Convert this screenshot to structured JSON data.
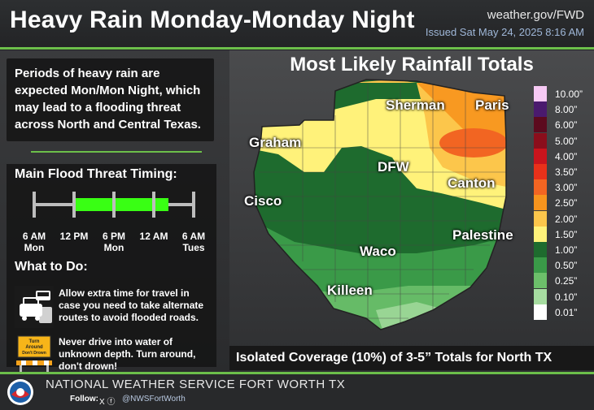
{
  "header": {
    "title": "Heavy Rain Monday-Monday Night",
    "website": "weather.gov/FWD",
    "issued": "Issued Sat May 24, 2025 8:16 AM"
  },
  "intro_text": "Periods of heavy rain are expected Mon/Mon Night, which may lead to a flooding threat across North and Central Texas.",
  "timing": {
    "title": "Main Flood Threat Timing:",
    "labels": [
      {
        "line1": "6 AM",
        "line2": "Mon"
      },
      {
        "line1": "12 PM",
        "line2": ""
      },
      {
        "line1": "6 PM",
        "line2": "Mon"
      },
      {
        "line1": "12 AM",
        "line2": ""
      },
      {
        "line1": "6 AM",
        "line2": "Tues"
      }
    ],
    "threat_window": {
      "start": "12 PM",
      "end": "~3 AM"
    },
    "fill_color": "#39ff14"
  },
  "todo": {
    "title": "What to Do:",
    "items": [
      {
        "icon": "traffic-cars-icon",
        "text": "Allow extra time for travel in case you need to take alternate routes to avoid flooded roads."
      },
      {
        "icon": "turn-around-dont-drown-sign-icon",
        "text": "Never drive into water of unknown depth. Turn around, don't drown!",
        "sign_text": "Turn Around Don't Drown"
      }
    ]
  },
  "map": {
    "title": "Most Likely Rainfall Totals",
    "cities": [
      "Sherman",
      "Paris",
      "Graham",
      "DFW",
      "Canton",
      "Cisco",
      "Palestine",
      "Waco",
      "Killeen"
    ],
    "caption": "Isolated Coverage (10%) of 3-5” Totals for North TX"
  },
  "legend": [
    {
      "label": "10.00”",
      "color": "#f6c9f4"
    },
    {
      "label": "8.00”",
      "color": "#4a1a6e"
    },
    {
      "label": "6.00”",
      "color": "#5c0a1e"
    },
    {
      "label": "5.00”",
      "color": "#8b0e1c"
    },
    {
      "label": "4.00”",
      "color": "#c9141d"
    },
    {
      "label": "3.50”",
      "color": "#e8311a"
    },
    {
      "label": "3.00”",
      "color": "#f26522"
    },
    {
      "label": "2.50”",
      "color": "#f7941d"
    },
    {
      "label": "2.00”",
      "color": "#fcc64b"
    },
    {
      "label": "1.50”",
      "color": "#fff27a"
    },
    {
      "label": "1.00”",
      "color": "#1e6b2e"
    },
    {
      "label": "0.50”",
      "color": "#3a9a48"
    },
    {
      "label": "0.25”",
      "color": "#6cbf6a"
    },
    {
      "label": "0.10”",
      "color": "#a6dca0"
    },
    {
      "label": "0.01”",
      "color": "#ffffff"
    }
  ],
  "footer": {
    "office": "NATIONAL WEATHER SERVICE FORT WORTH TX",
    "follow": "Follow:",
    "social_icons": "X ⓕ",
    "handle": "@NWSFortWorth",
    "logo_text": "NOAA"
  }
}
